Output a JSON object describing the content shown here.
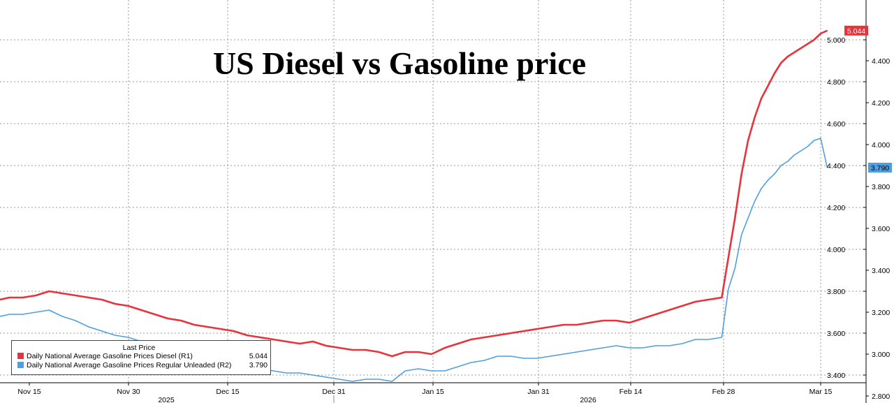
{
  "chart_data": {
    "type": "line",
    "title": "US Diesel vs Gasoline price",
    "legend": {
      "header": "Last Price",
      "placement": "bottom-left",
      "entries": [
        {
          "name": "Daily National Average Gasoline Prices Diesel  (R1)",
          "value": "5.044",
          "color": "#e8323c"
        },
        {
          "name": "Daily National Average Gasoline Prices Regular Unleaded  (R2)",
          "value": "3.790",
          "color": "#4f9fe0"
        }
      ]
    },
    "x_tick_labels": [
      "Nov 15",
      "Nov 30",
      "Dec 15",
      "Dec 31",
      "Jan 15",
      "Jan 31",
      "Feb 14",
      "Feb 28",
      "Mar 15"
    ],
    "year_labels": [
      "2025",
      "2026"
    ],
    "y_axis_r1": {
      "ticks": [
        "5.000",
        "4.800",
        "4.600",
        "4.400",
        "4.200",
        "4.000",
        "3.800",
        "3.600",
        "3.400"
      ],
      "ylim": [
        3.34,
        5.2
      ]
    },
    "y_axis_r2": {
      "ticks": [
        "4.400",
        "4.200",
        "4.000",
        "3.800",
        "3.600",
        "3.400",
        "3.200",
        "3.000",
        "2.800"
      ],
      "ylim": [
        2.66,
        4.52
      ]
    },
    "last_price_labels": {
      "diesel": "5.044",
      "gasoline": "3.790"
    },
    "grid": true,
    "series": [
      {
        "name": "Daily National Average Gasoline Prices Diesel  (R1)",
        "axis": "R1",
        "color": "#e8323c",
        "x": [
          "Nov 10",
          "Nov 12",
          "Nov 14",
          "Nov 16",
          "Nov 18",
          "Nov 20",
          "Nov 22",
          "Nov 24",
          "Nov 26",
          "Nov 28",
          "Nov 30",
          "Dec 2",
          "Dec 4",
          "Dec 6",
          "Dec 8",
          "Dec 10",
          "Dec 12",
          "Dec 14",
          "Dec 16",
          "Dec 18",
          "Dec 20",
          "Dec 22",
          "Dec 24",
          "Dec 26",
          "Dec 28",
          "Dec 30",
          "Jan 1",
          "Jan 3",
          "Jan 5",
          "Jan 7",
          "Jan 9",
          "Jan 11",
          "Jan 13",
          "Jan 15",
          "Jan 17",
          "Jan 19",
          "Jan 21",
          "Jan 23",
          "Jan 25",
          "Jan 27",
          "Jan 29",
          "Jan 31",
          "Feb 2",
          "Feb 4",
          "Feb 6",
          "Feb 8",
          "Feb 10",
          "Feb 12",
          "Feb 14",
          "Feb 16",
          "Feb 18",
          "Feb 20",
          "Feb 22",
          "Feb 24",
          "Feb 26",
          "Feb 28",
          "Mar 1",
          "Mar 2",
          "Mar 3",
          "Mar 4",
          "Mar 5",
          "Mar 6",
          "Mar 7",
          "Mar 8",
          "Mar 9",
          "Mar 10",
          "Mar 11",
          "Mar 12",
          "Mar 13",
          "Mar 14",
          "Mar 15",
          "Mar 16"
        ],
        "values": [
          3.76,
          3.77,
          3.77,
          3.78,
          3.8,
          3.79,
          3.78,
          3.77,
          3.76,
          3.74,
          3.73,
          3.71,
          3.69,
          3.67,
          3.66,
          3.64,
          3.63,
          3.62,
          3.61,
          3.59,
          3.58,
          3.57,
          3.56,
          3.55,
          3.56,
          3.54,
          3.53,
          3.52,
          3.52,
          3.51,
          3.49,
          3.51,
          3.51,
          3.5,
          3.53,
          3.55,
          3.57,
          3.58,
          3.59,
          3.6,
          3.61,
          3.62,
          3.63,
          3.64,
          3.64,
          3.65,
          3.66,
          3.66,
          3.65,
          3.67,
          3.69,
          3.71,
          3.73,
          3.75,
          3.76,
          3.77,
          3.96,
          4.15,
          4.36,
          4.52,
          4.63,
          4.72,
          4.78,
          4.84,
          4.89,
          4.92,
          4.94,
          4.96,
          4.98,
          5.0,
          5.03,
          5.044
        ]
      },
      {
        "name": "Daily National Average Gasoline Prices Regular Unleaded  (R2)",
        "axis": "R2",
        "color": "#4f9fe0",
        "x": [
          "Nov 10",
          "Nov 12",
          "Nov 14",
          "Nov 16",
          "Nov 18",
          "Nov 20",
          "Nov 22",
          "Nov 24",
          "Nov 26",
          "Nov 28",
          "Nov 30",
          "Dec 2",
          "Dec 4",
          "Dec 6",
          "Dec 8",
          "Dec 10",
          "Dec 12",
          "Dec 14",
          "Dec 16",
          "Dec 18",
          "Dec 20",
          "Dec 22",
          "Dec 24",
          "Dec 26",
          "Dec 28",
          "Dec 30",
          "Jan 1",
          "Jan 3",
          "Jan 5",
          "Jan 7",
          "Jan 9",
          "Jan 11",
          "Jan 13",
          "Jan 15",
          "Jan 17",
          "Jan 19",
          "Jan 21",
          "Jan 23",
          "Jan 25",
          "Jan 27",
          "Jan 29",
          "Jan 31",
          "Feb 2",
          "Feb 4",
          "Feb 6",
          "Feb 8",
          "Feb 10",
          "Feb 12",
          "Feb 14",
          "Feb 16",
          "Feb 18",
          "Feb 20",
          "Feb 22",
          "Feb 24",
          "Feb 26",
          "Feb 28",
          "Mar 1",
          "Mar 2",
          "Mar 3",
          "Mar 4",
          "Mar 5",
          "Mar 6",
          "Mar 7",
          "Mar 8",
          "Mar 9",
          "Mar 10",
          "Mar 11",
          "Mar 12",
          "Mar 13",
          "Mar 14",
          "Mar 15",
          "Mar 16"
        ],
        "values": [
          3.08,
          3.09,
          3.09,
          3.1,
          3.11,
          3.08,
          3.06,
          3.03,
          3.01,
          2.99,
          2.98,
          2.96,
          2.94,
          2.93,
          2.91,
          2.9,
          2.88,
          2.87,
          2.86,
          2.84,
          2.83,
          2.82,
          2.81,
          2.81,
          2.8,
          2.79,
          2.78,
          2.77,
          2.78,
          2.78,
          2.77,
          2.82,
          2.83,
          2.82,
          2.82,
          2.84,
          2.86,
          2.87,
          2.89,
          2.89,
          2.88,
          2.88,
          2.89,
          2.9,
          2.91,
          2.92,
          2.93,
          2.94,
          2.93,
          2.93,
          2.94,
          2.94,
          2.95,
          2.97,
          2.97,
          2.98,
          3.21,
          3.31,
          3.47,
          3.55,
          3.63,
          3.69,
          3.73,
          3.76,
          3.8,
          3.82,
          3.85,
          3.87,
          3.89,
          3.92,
          3.93,
          3.79
        ]
      }
    ]
  }
}
